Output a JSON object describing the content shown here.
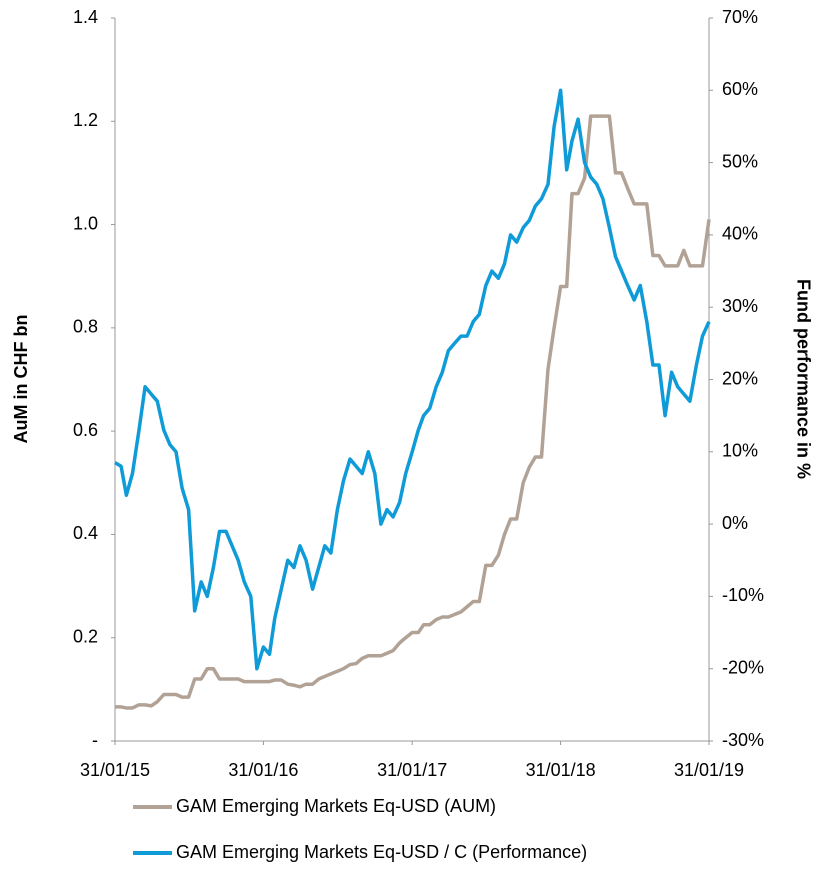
{
  "chart_data": {
    "type": "line",
    "y_label": "AuM in CHF bn",
    "y2_label": "Fund performance in %",
    "x": [
      "2015-01-31",
      "2015-02-15",
      "2015-02-28",
      "2015-03-15",
      "2015-03-31",
      "2015-04-15",
      "2015-04-30",
      "2015-05-15",
      "2015-05-31",
      "2015-06-15",
      "2015-06-30",
      "2015-07-15",
      "2015-07-31",
      "2015-08-15",
      "2015-08-31",
      "2015-09-15",
      "2015-09-30",
      "2015-10-15",
      "2015-10-31",
      "2015-11-15",
      "2015-11-30",
      "2015-12-15",
      "2015-12-31",
      "2016-01-15",
      "2016-01-31",
      "2016-02-15",
      "2016-02-28",
      "2016-03-15",
      "2016-03-31",
      "2016-04-15",
      "2016-04-30",
      "2016-05-15",
      "2016-05-31",
      "2016-06-15",
      "2016-06-30",
      "2016-07-15",
      "2016-07-31",
      "2016-08-15",
      "2016-08-31",
      "2016-09-15",
      "2016-09-30",
      "2016-10-15",
      "2016-10-31",
      "2016-11-15",
      "2016-11-30",
      "2016-12-15",
      "2016-12-31",
      "2017-01-15",
      "2017-01-31",
      "2017-02-15",
      "2017-02-28",
      "2017-03-15",
      "2017-03-31",
      "2017-04-15",
      "2017-04-30",
      "2017-05-15",
      "2017-05-31",
      "2017-06-15",
      "2017-06-30",
      "2017-07-15",
      "2017-07-31",
      "2017-08-15",
      "2017-08-31",
      "2017-09-15",
      "2017-09-30",
      "2017-10-15",
      "2017-10-31",
      "2017-11-15",
      "2017-11-30",
      "2017-12-15",
      "2017-12-31",
      "2018-01-15",
      "2018-01-31",
      "2018-02-15",
      "2018-02-28",
      "2018-03-15",
      "2018-03-31",
      "2018-04-15",
      "2018-04-30",
      "2018-05-15",
      "2018-05-31",
      "2018-06-15",
      "2018-06-30",
      "2018-07-15",
      "2018-07-31",
      "2018-08-15",
      "2018-08-31",
      "2018-09-15",
      "2018-09-30",
      "2018-10-15",
      "2018-10-31",
      "2018-11-15",
      "2018-11-30",
      "2018-12-15",
      "2018-12-31",
      "2019-01-15",
      "2019-01-31"
    ],
    "xlim": [
      "2015-01-31",
      "2019-01-31"
    ],
    "xticks": [
      {
        "value": "2015-01-31",
        "label": "31/01/15"
      },
      {
        "value": "2016-01-31",
        "label": "31/01/16"
      },
      {
        "value": "2017-01-31",
        "label": "31/01/17"
      },
      {
        "value": "2018-01-31",
        "label": "31/01/18"
      },
      {
        "value": "2019-01-31",
        "label": "31/01/19"
      }
    ],
    "ylim": [
      0,
      1.4
    ],
    "yticks": [
      {
        "value": 0,
        "label": "-"
      },
      0.2,
      0.4,
      0.6,
      0.8,
      {
        "value": 1,
        "label": "1.0"
      },
      1.2,
      1.4
    ],
    "y2lim": [
      -30,
      70
    ],
    "y2ticks": [
      {
        "value": -30,
        "label": "-30%"
      },
      {
        "value": -20,
        "label": "-20%"
      },
      {
        "value": -10,
        "label": "-10%"
      },
      {
        "value": 0,
        "label": "0%"
      },
      {
        "value": 10,
        "label": "10%"
      },
      {
        "value": 20,
        "label": "20%"
      },
      {
        "value": 30,
        "label": "30%"
      },
      {
        "value": 40,
        "label": "40%"
      },
      {
        "value": 50,
        "label": "50%"
      },
      {
        "value": 60,
        "label": "60%"
      },
      {
        "value": 70,
        "label": "70%"
      }
    ],
    "grid": false,
    "legend": "bottom",
    "series": [
      {
        "name": "GAM Emerging Markets Eq-USD (AUM)",
        "color": "#b1a295",
        "axis": "y",
        "values": [
          0.066,
          0.066,
          0.064,
          0.064,
          0.07,
          0.07,
          0.068,
          0.076,
          0.09,
          0.09,
          0.09,
          0.085,
          0.085,
          0.12,
          0.12,
          0.14,
          0.14,
          0.12,
          0.12,
          0.12,
          0.12,
          0.115,
          0.115,
          0.115,
          0.115,
          0.115,
          0.118,
          0.118,
          0.11,
          0.108,
          0.105,
          0.11,
          0.11,
          0.12,
          0.125,
          0.13,
          0.135,
          0.14,
          0.148,
          0.15,
          0.16,
          0.165,
          0.165,
          0.165,
          0.17,
          0.175,
          0.19,
          0.2,
          0.21,
          0.21,
          0.225,
          0.225,
          0.235,
          0.24,
          0.24,
          0.245,
          0.25,
          0.26,
          0.27,
          0.27,
          0.34,
          0.34,
          0.36,
          0.4,
          0.43,
          0.43,
          0.5,
          0.53,
          0.55,
          0.55,
          0.72,
          0.8,
          0.88,
          0.88,
          1.06,
          1.06,
          1.09,
          1.21,
          1.21,
          1.21,
          1.21,
          1.1,
          1.1,
          1.07,
          1.04,
          1.04,
          1.04,
          0.94,
          0.94,
          0.92,
          0.92,
          0.92,
          0.95,
          0.92,
          0.92,
          0.92,
          1.01
        ]
      },
      {
        "name": "GAM Emerging Markets Eq-USD / C (Performance)",
        "color": "#0f9bd7",
        "axis": "y2",
        "values": [
          8.5,
          8,
          4,
          7,
          13,
          19,
          18,
          17,
          13,
          11,
          10,
          5,
          2,
          -12,
          -8,
          -10,
          -6,
          -1,
          -1,
          -3,
          -5,
          -8,
          -10,
          -20,
          -17,
          -18,
          -13,
          -9,
          -5,
          -6,
          -3,
          -5,
          -9,
          -6,
          -3,
          -4,
          2,
          6,
          9,
          8,
          7,
          10,
          7,
          0,
          2,
          1,
          3,
          7,
          10,
          13,
          15,
          16,
          19,
          21,
          24,
          25,
          26,
          26,
          28,
          29,
          33,
          35,
          34,
          36,
          40,
          39,
          41,
          42,
          44,
          45,
          47,
          55,
          60,
          49,
          53,
          56,
          50,
          48,
          47,
          45,
          41,
          37,
          35,
          33,
          31,
          33,
          28,
          22,
          22,
          15,
          21,
          19,
          18,
          17,
          22,
          26,
          28
        ]
      }
    ]
  }
}
